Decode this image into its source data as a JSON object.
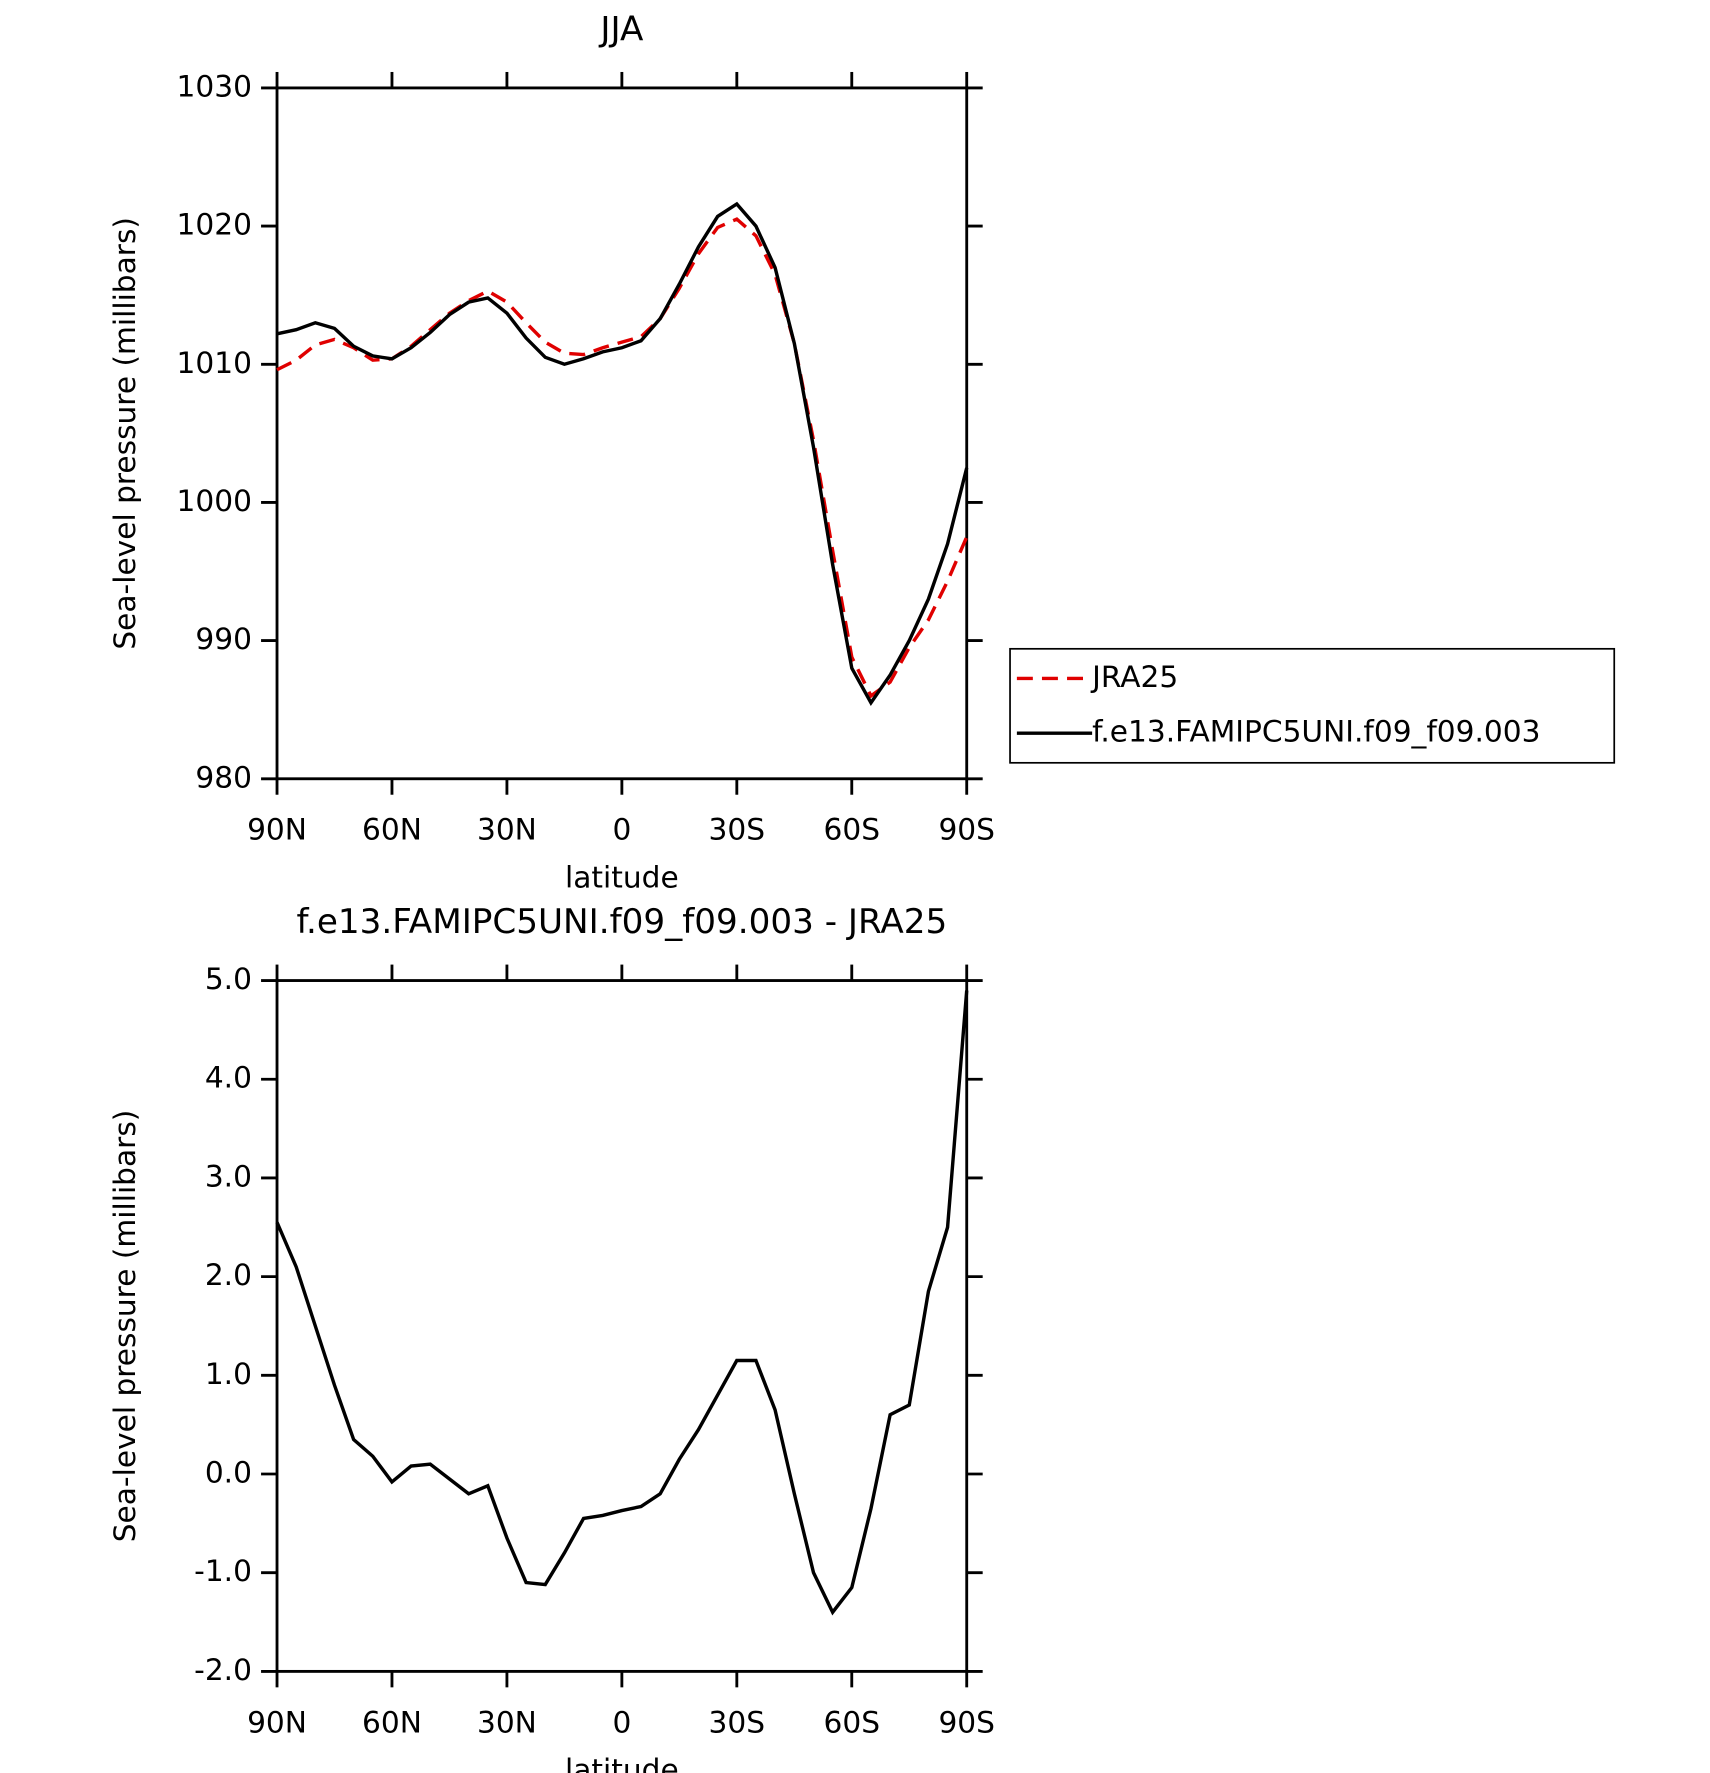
{
  "chart_data": [
    {
      "type": "line",
      "title": "JJA",
      "xlabel": "latitude",
      "ylabel": "Sea-level pressure (millibars)",
      "x": [
        90,
        85,
        80,
        75,
        70,
        65,
        60,
        55,
        50,
        45,
        40,
        35,
        30,
        25,
        20,
        15,
        10,
        5,
        0,
        -5,
        -10,
        -15,
        -20,
        -25,
        -30,
        -35,
        -40,
        -45,
        -50,
        -55,
        -60,
        -65,
        -70,
        -75,
        -80,
        -85,
        -90
      ],
      "xlim": [
        90,
        -90
      ],
      "xticks": [
        {
          "value": 90,
          "label": "90N"
        },
        {
          "value": 60,
          "label": "60N"
        },
        {
          "value": 30,
          "label": "30N"
        },
        0,
        {
          "value": -30,
          "label": "30S"
        },
        {
          "value": -60,
          "label": "60S"
        },
        {
          "value": -90,
          "label": "90S"
        }
      ],
      "ylim": [
        980,
        1030
      ],
      "yticks": [
        980,
        990,
        1000,
        1010,
        1020,
        1030
      ],
      "legend": "right",
      "series": [
        {
          "name": "JRA25",
          "color": "#e00000",
          "dashed": true,
          "values": [
            1009.6,
            1010.3,
            1011.4,
            1011.8,
            1011.2,
            1010.3,
            1010.4,
            1011.3,
            1012.5,
            1013.7,
            1014.6,
            1015.3,
            1014.5,
            1013.0,
            1011.6,
            1010.8,
            1010.7,
            1011.2,
            1011.6,
            1012.0,
            1013.3,
            1015.5,
            1018.0,
            1019.9,
            1020.5,
            1019.3,
            1016.5,
            1011.5,
            1004.5,
            996.5,
            988.8,
            986.0,
            987.0,
            989.5,
            991.5,
            994.3,
            997.5
          ]
        },
        {
          "name": "f.e13.FAMIPC5UNI.f09_f09.003",
          "color": "#000000",
          "dashed": false,
          "values": [
            1012.2,
            1012.5,
            1013.0,
            1012.6,
            1011.3,
            1010.6,
            1010.4,
            1011.2,
            1012.3,
            1013.6,
            1014.5,
            1014.8,
            1013.7,
            1011.9,
            1010.5,
            1010.0,
            1010.4,
            1010.9,
            1011.2,
            1011.7,
            1013.3,
            1015.8,
            1018.5,
            1020.7,
            1021.6,
            1020.0,
            1017.0,
            1011.5,
            1004.0,
            995.5,
            988.0,
            985.5,
            987.5,
            990.0,
            993.0,
            997.0,
            1002.5
          ]
        }
      ]
    },
    {
      "type": "line",
      "title": "f.e13.FAMIPC5UNI.f09_f09.003 - JRA25",
      "xlabel": "latitude",
      "ylabel": "Sea-level pressure (millibars)",
      "x": [
        90,
        85,
        80,
        75,
        70,
        65,
        60,
        55,
        50,
        45,
        40,
        35,
        30,
        25,
        20,
        15,
        10,
        5,
        0,
        -5,
        -10,
        -15,
        -20,
        -25,
        -30,
        -35,
        -40,
        -45,
        -50,
        -55,
        -60,
        -65,
        -70,
        -75,
        -80,
        -85,
        -90
      ],
      "xlim": [
        90,
        -90
      ],
      "xticks": [
        {
          "value": 90,
          "label": "90N"
        },
        {
          "value": 60,
          "label": "60N"
        },
        {
          "value": 30,
          "label": "30N"
        },
        0,
        {
          "value": -30,
          "label": "30S"
        },
        {
          "value": -60,
          "label": "60S"
        },
        {
          "value": -90,
          "label": "90S"
        }
      ],
      "ylim": [
        -2,
        5
      ],
      "yticks": [
        {
          "value": -2,
          "label": "-2.0"
        },
        {
          "value": -1,
          "label": "-1.0"
        },
        {
          "value": 0,
          "label": "0.0"
        },
        {
          "value": 1,
          "label": "1.0"
        },
        {
          "value": 2,
          "label": "2.0"
        },
        {
          "value": 3,
          "label": "3.0"
        },
        {
          "value": 4,
          "label": "4.0"
        },
        {
          "value": 5,
          "label": "5.0"
        }
      ],
      "color": "#000000",
      "values": [
        2.55,
        2.1,
        1.5,
        0.9,
        0.35,
        0.18,
        -0.08,
        0.08,
        0.1,
        -0.05,
        -0.2,
        -0.12,
        -0.65,
        -1.1,
        -1.12,
        -0.8,
        -0.45,
        -0.42,
        -0.37,
        -0.33,
        -0.2,
        0.15,
        0.45,
        0.8,
        1.15,
        1.15,
        0.65,
        -0.2,
        -1.0,
        -1.4,
        -1.15,
        -0.35,
        0.6,
        0.7,
        1.85,
        2.5,
        4.9
      ]
    }
  ]
}
